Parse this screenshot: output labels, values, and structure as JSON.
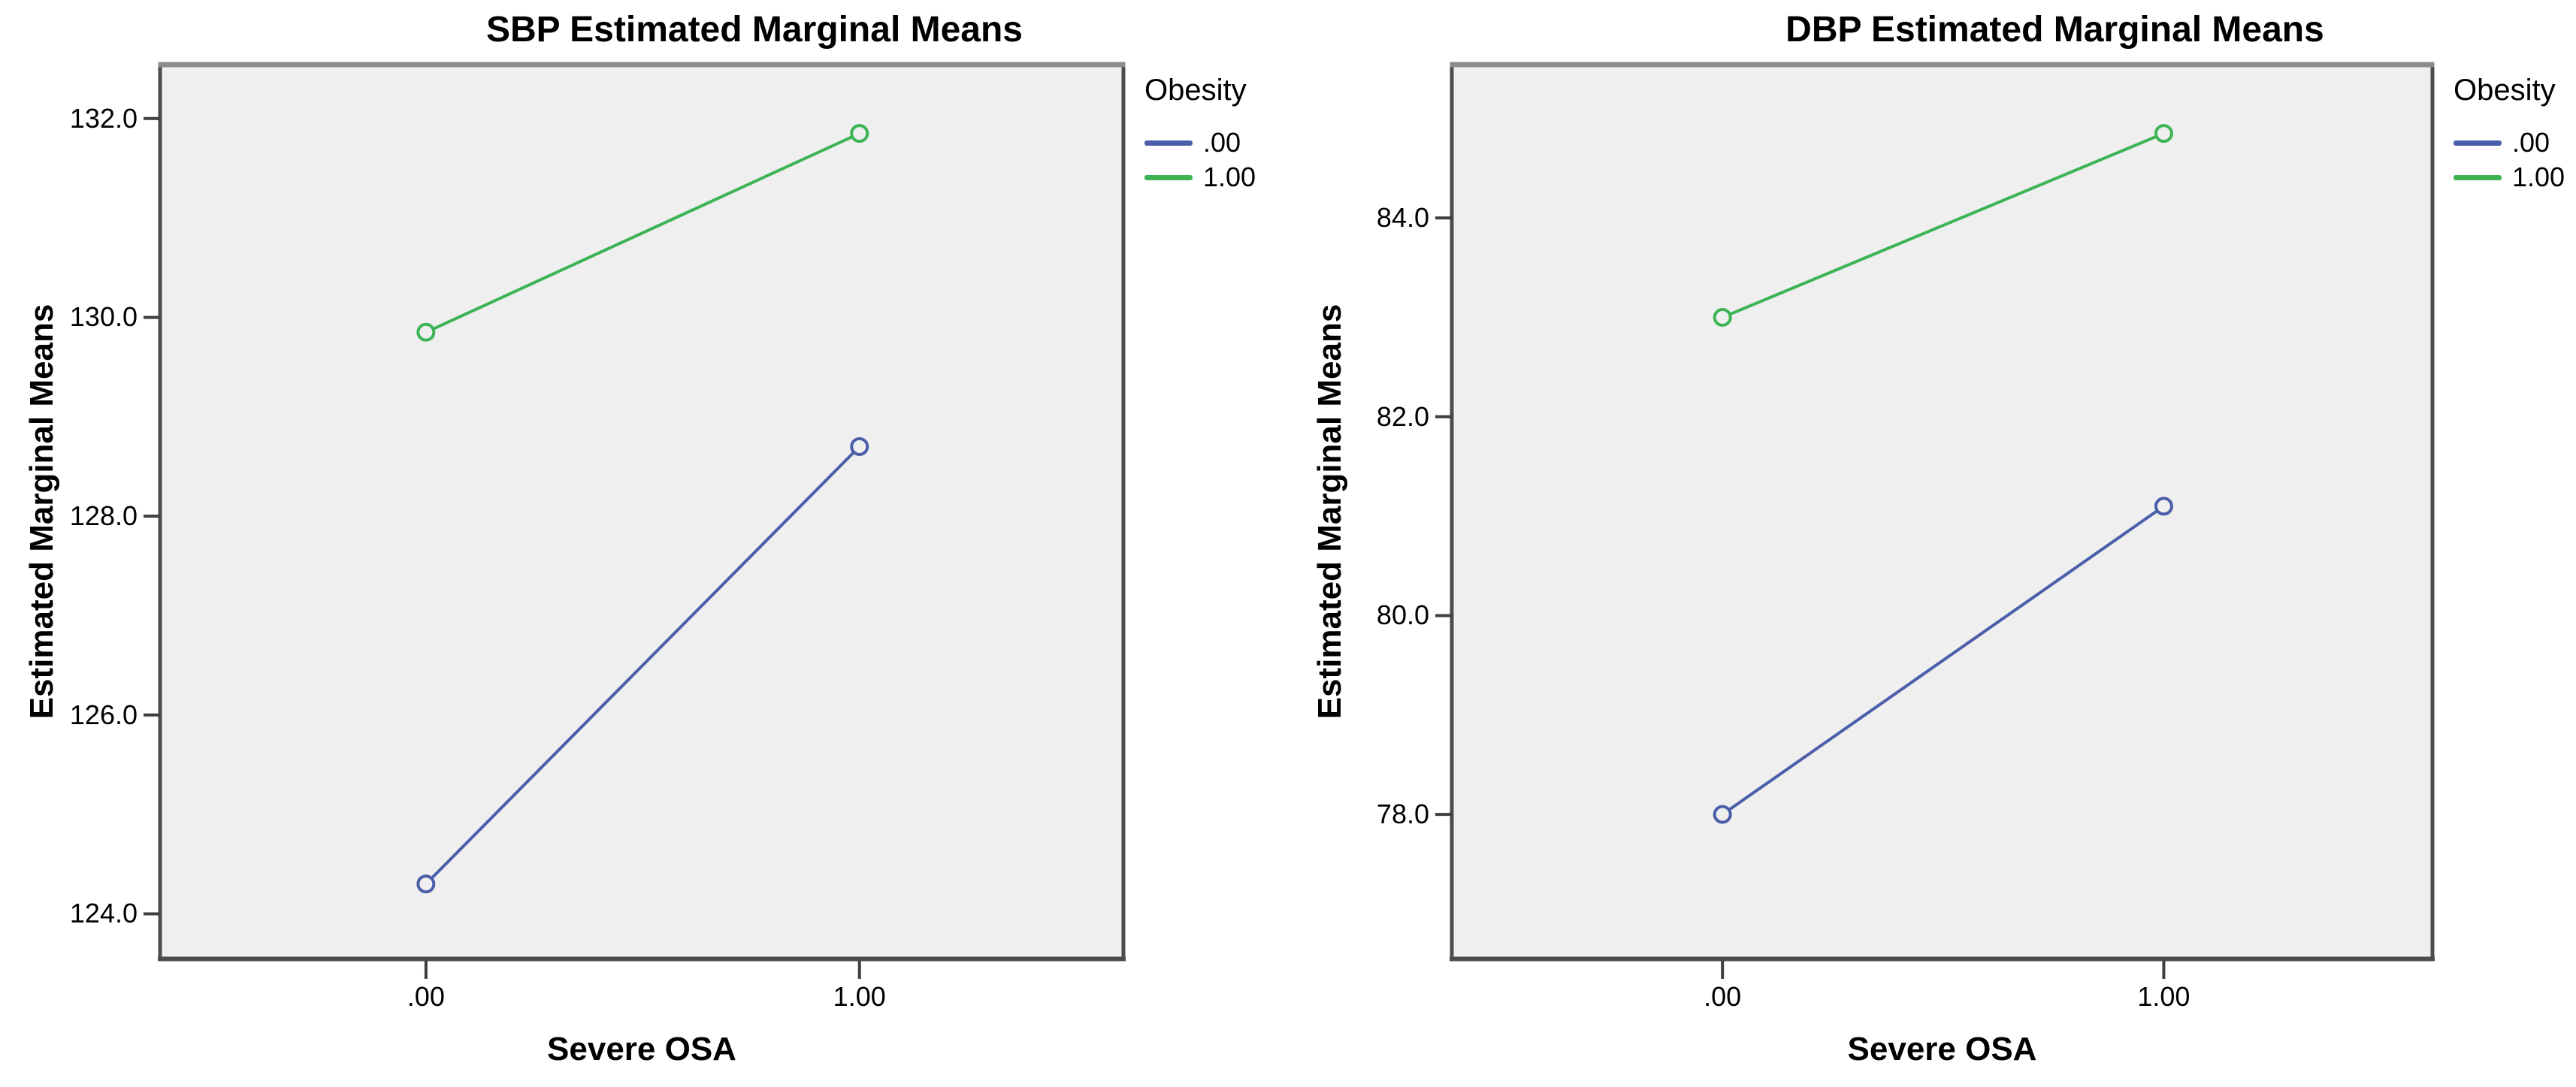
{
  "page": {
    "background": "#FFFFFF"
  },
  "chart_data": [
    {
      "type": "line",
      "title": "SBP Estimated Marginal Means",
      "xlabel": "Severe OSA",
      "ylabel": "Estimated Marginal Means",
      "legend_title": "Obesity",
      "legend_position": "right",
      "grid": false,
      "plot_bg": "#F0EFF0",
      "marker": "open-circle",
      "x": [
        0,
        1
      ],
      "x_tick_labels": [
        ".00",
        "1.00"
      ],
      "y_ticks": [
        124,
        126,
        128,
        130,
        132
      ],
      "y_tick_labels": [
        "124.0",
        "126.0",
        "128.0",
        "130.0",
        "132.0"
      ],
      "ylim": [
        123.55,
        132.55
      ],
      "series": [
        {
          "name": ".00",
          "color": "#4A5EA9",
          "values": [
            124.3,
            128.7
          ]
        },
        {
          "name": "1.00",
          "color": "#3CB454",
          "values": [
            129.85,
            131.85
          ]
        }
      ]
    },
    {
      "type": "line",
      "title": "DBP Estimated Marginal Means",
      "xlabel": "Severe OSA",
      "ylabel": "Estimated Marginal Means",
      "legend_title": "Obesity",
      "legend_position": "right",
      "grid": false,
      "plot_bg": "#F0EFF0",
      "marker": "open-circle",
      "x": [
        0,
        1
      ],
      "x_tick_labels": [
        ".00",
        "1.00"
      ],
      "y_ticks": [
        78,
        80,
        82,
        84
      ],
      "y_tick_labels": [
        "78.0",
        "80.0",
        "82.0",
        "84.0"
      ],
      "ylim": [
        76.55,
        85.55
      ],
      "series": [
        {
          "name": ".00",
          "color": "#4A5EA9",
          "values": [
            78.0,
            81.1
          ]
        },
        {
          "name": "1.00",
          "color": "#3CB454",
          "values": [
            83.0,
            84.85
          ]
        }
      ]
    }
  ]
}
